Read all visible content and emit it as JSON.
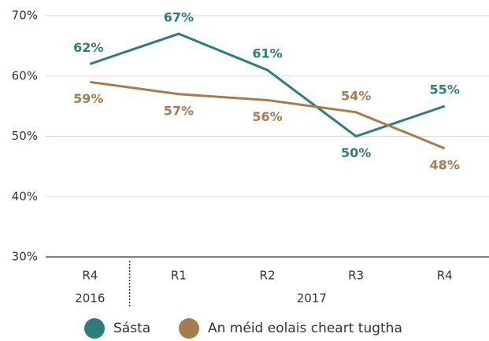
{
  "chart_data": {
    "type": "line",
    "categories": [
      "R4",
      "R1",
      "R2",
      "R3",
      "R4"
    ],
    "groups": [
      {
        "label": "2016",
        "count": 1
      },
      {
        "label": "2017",
        "count": 4
      }
    ],
    "series": [
      {
        "name": "Sásta",
        "color": "#2e7d78",
        "values": [
          62,
          67,
          61,
          50,
          55
        ],
        "value_labels": [
          "62%",
          "67%",
          "61%",
          "50%",
          "55%"
        ]
      },
      {
        "name": "An méid eolais cheart tugtha",
        "color": "#a67c4e",
        "values": [
          59,
          57,
          56,
          54,
          48
        ],
        "value_labels": [
          "59%",
          "57%",
          "56%",
          "54%",
          "48%"
        ]
      }
    ],
    "ylim": [
      30,
      70
    ],
    "yticks": [
      {
        "value": 30,
        "label": "30%"
      },
      {
        "value": 40,
        "label": "40%"
      },
      {
        "value": 50,
        "label": "50%"
      },
      {
        "value": 60,
        "label": "60%"
      },
      {
        "value": 70,
        "label": "70%"
      }
    ],
    "grid": true
  }
}
